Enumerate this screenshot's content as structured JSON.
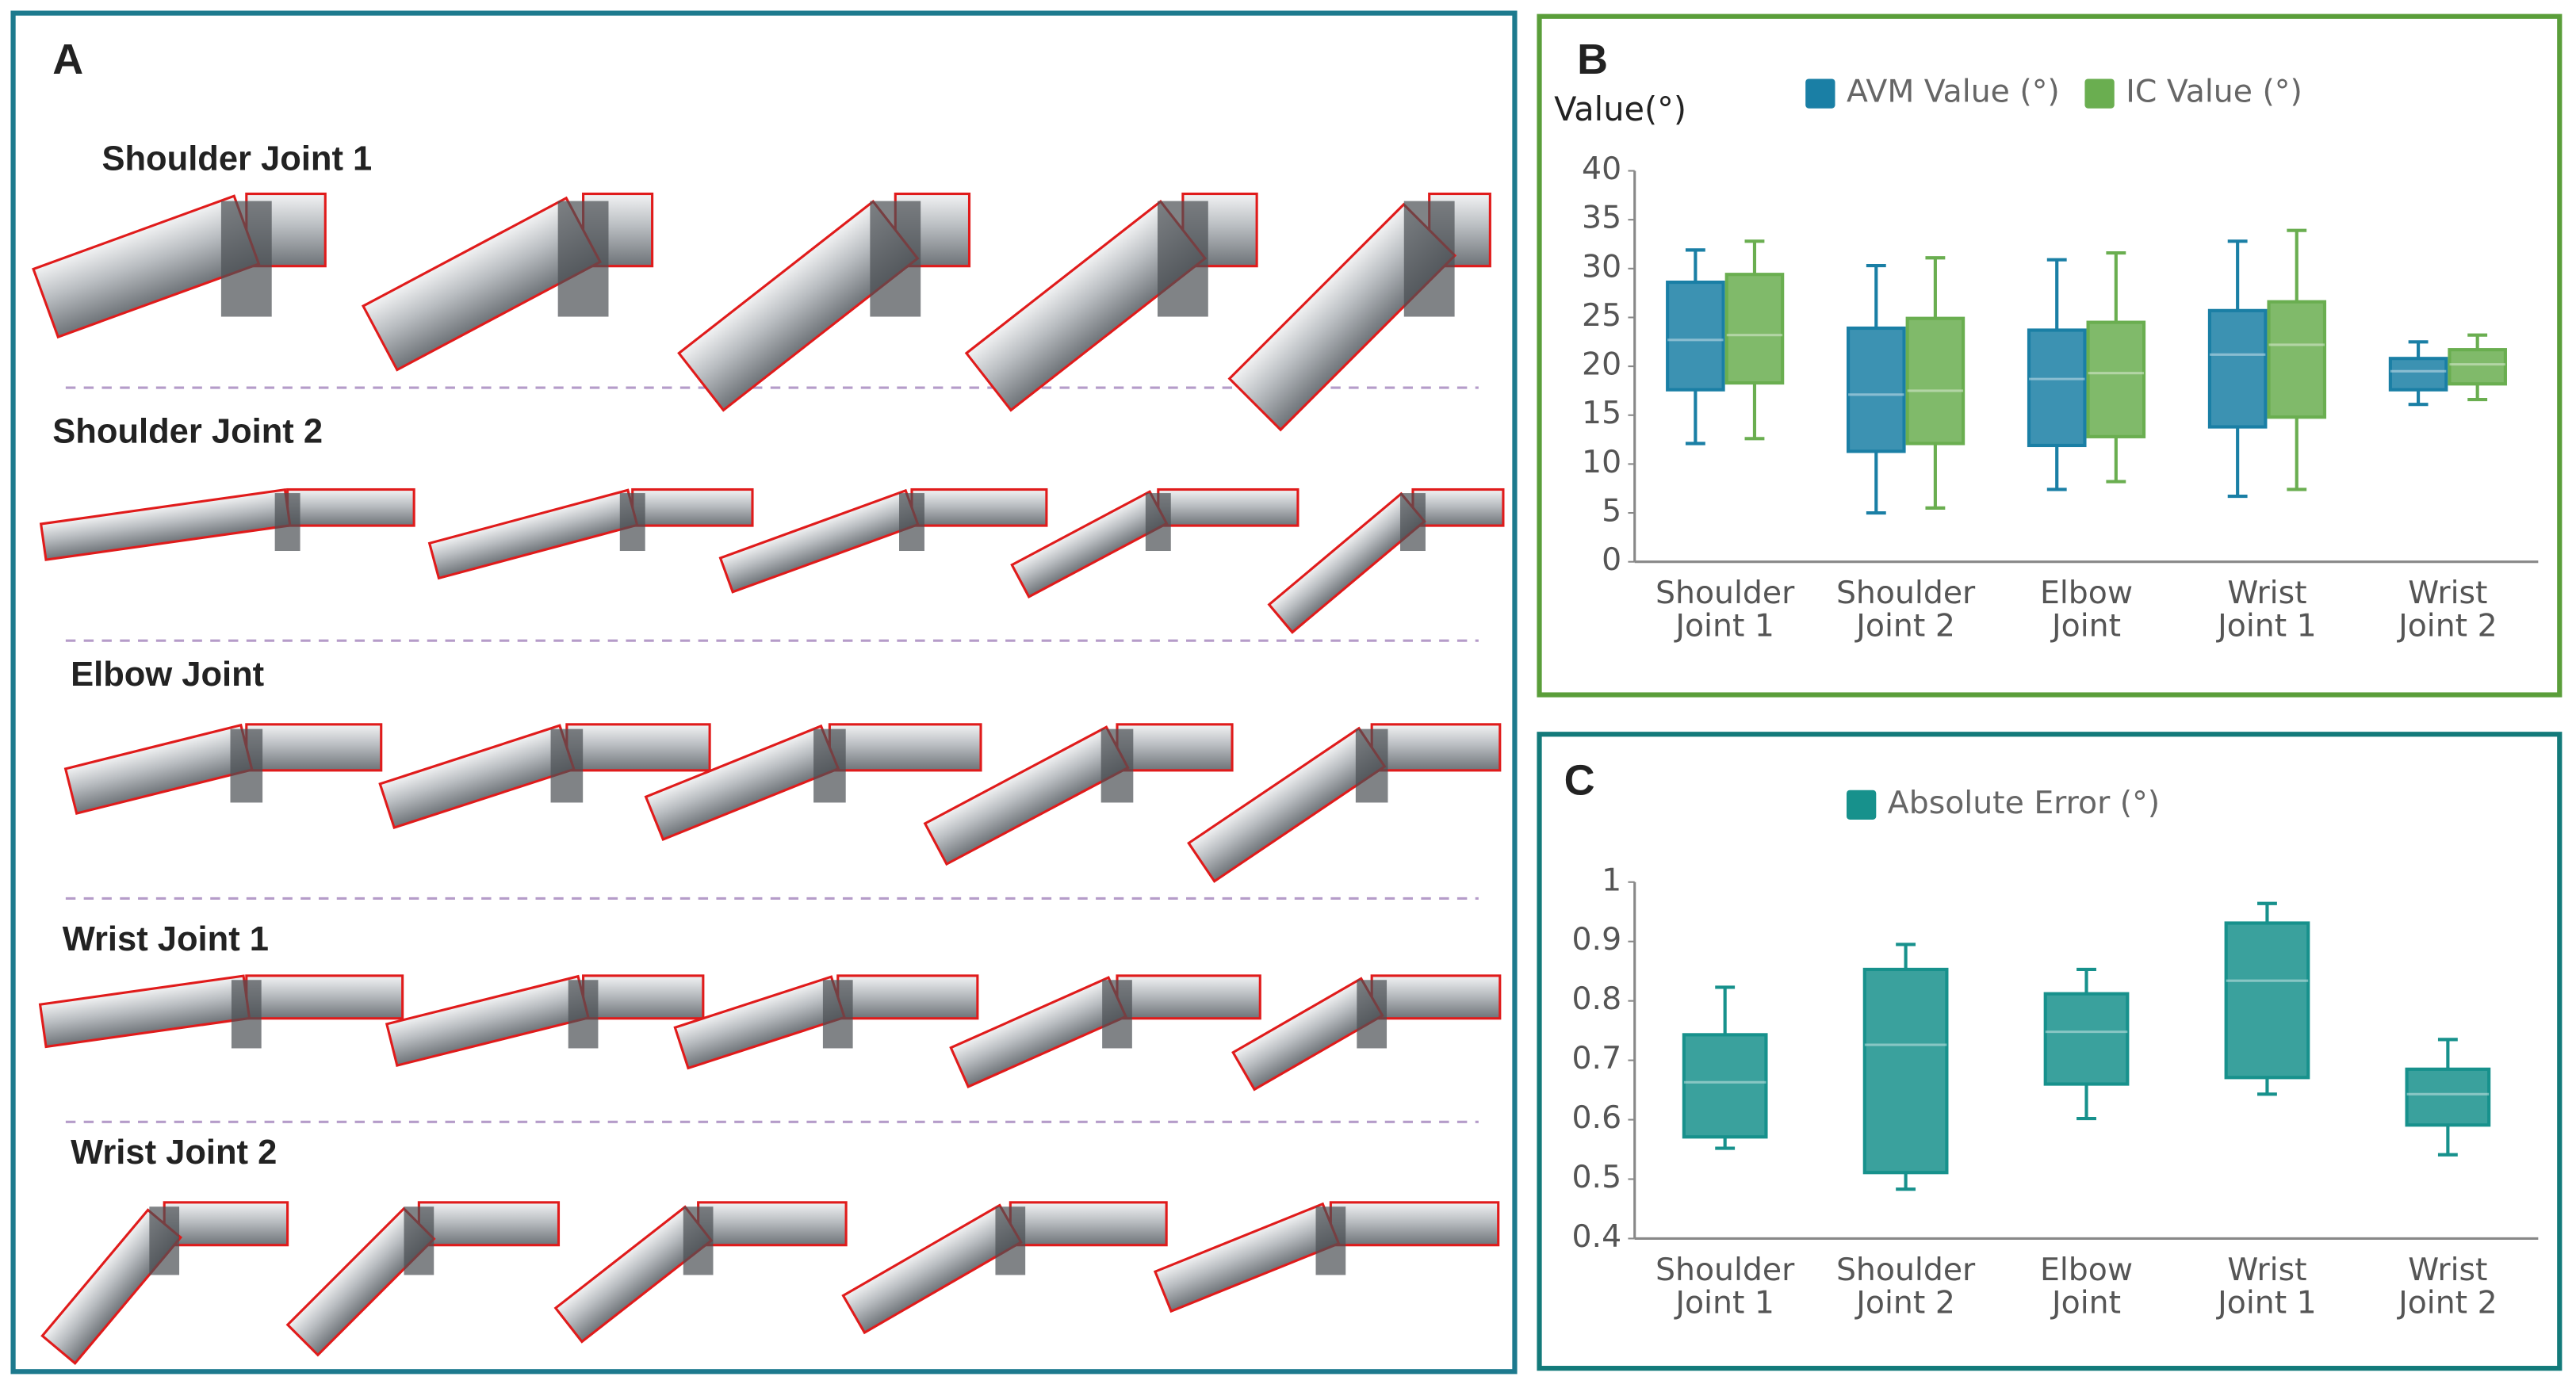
{
  "panel_a": {
    "label": "A",
    "rows": [
      "Shoulder Joint 1",
      "Shoulder Joint 2",
      "Elbow Joint",
      "Wrist Joint 1",
      "Wrist Joint 2"
    ]
  },
  "chart_data": [
    {
      "type": "box",
      "label": "B",
      "ylabel": "Value(°)",
      "categories": [
        [
          "Shoulder",
          "Joint 1"
        ],
        [
          "Shoulder",
          "Joint 2"
        ],
        [
          "Elbow",
          "Joint"
        ],
        [
          "Wrist",
          "Joint 1"
        ],
        [
          "Wrist",
          "Joint 2"
        ]
      ],
      "series": [
        {
          "name": "AVM Value (°)",
          "color": "#1a7fa5",
          "min": [
            12.1,
            5.0,
            7.4,
            6.7,
            16.1
          ],
          "q1": [
            17.6,
            11.3,
            11.9,
            13.8,
            17.6
          ],
          "median": [
            22.7,
            17.1,
            18.7,
            21.2,
            19.5
          ],
          "q3": [
            28.6,
            23.9,
            23.7,
            25.7,
            20.8
          ],
          "max": [
            31.9,
            30.3,
            30.9,
            32.8,
            22.5
          ]
        },
        {
          "name": "IC Value (°)",
          "color": "#6aae50",
          "min": [
            12.6,
            5.5,
            8.2,
            7.4,
            16.6
          ],
          "q1": [
            18.3,
            12.1,
            12.8,
            14.8,
            18.2
          ],
          "median": [
            23.2,
            17.5,
            19.3,
            22.2,
            20.2
          ],
          "q3": [
            29.4,
            24.9,
            24.5,
            26.6,
            21.7
          ],
          "max": [
            32.8,
            31.1,
            31.6,
            33.9,
            23.2
          ]
        }
      ],
      "ylim": [
        0,
        40
      ],
      "yticks": [
        0,
        5,
        10,
        15,
        20,
        25,
        30,
        35,
        40
      ]
    },
    {
      "type": "box",
      "label": "C",
      "categories": [
        [
          "Shoulder",
          "Joint 1"
        ],
        [
          "Shoulder",
          "Joint 2"
        ],
        [
          "Elbow",
          "Joint"
        ],
        [
          "Wrist",
          "Joint 1"
        ],
        [
          "Wrist",
          "Joint 2"
        ]
      ],
      "series": [
        {
          "name": "Absolute Error (°)",
          "color": "#17918c",
          "min": [
            0.552,
            0.483,
            0.602,
            0.643,
            0.541
          ],
          "q1": [
            0.571,
            0.511,
            0.66,
            0.671,
            0.591
          ],
          "median": [
            0.663,
            0.726,
            0.748,
            0.834,
            0.643
          ],
          "q3": [
            0.743,
            0.853,
            0.812,
            0.931,
            0.685
          ],
          "max": [
            0.823,
            0.895,
            0.853,
            0.964,
            0.735
          ]
        }
      ],
      "ylim": [
        0.4,
        1
      ],
      "yticks": [
        0.4,
        0.5,
        0.6,
        0.7,
        0.8,
        0.9,
        1
      ]
    }
  ]
}
